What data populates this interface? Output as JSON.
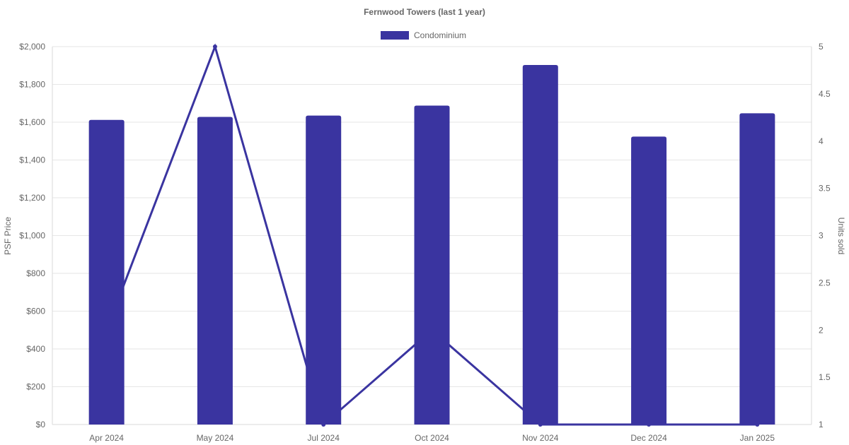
{
  "chart_data": {
    "type": "bar",
    "title": "Fernwood Towers (last 1 year)",
    "categories": [
      "Apr 2024",
      "May 2024",
      "Jul 2024",
      "Oct 2024",
      "Nov 2024",
      "Dec 2024",
      "Jan 2025"
    ],
    "series": [
      {
        "name": "Condominium",
        "type": "bar",
        "axis": "left",
        "values": [
          1612,
          1628,
          1635,
          1688,
          1903,
          1524,
          1647
        ]
      },
      {
        "type": "line",
        "axis": "right",
        "values": [
          2,
          5,
          1,
          2,
          1,
          1,
          1
        ]
      }
    ],
    "y_left": {
      "label": "PSF Price",
      "range": [
        0,
        2000
      ],
      "ticks": [
        "$0",
        "$200",
        "$400",
        "$600",
        "$800",
        "$1,000",
        "$1,200",
        "$1,400",
        "$1,600",
        "$1,800",
        "$2,000"
      ]
    },
    "y_right": {
      "label": "Units sold",
      "range": [
        1,
        5
      ],
      "ticks": [
        "1",
        "1.5",
        "2",
        "2.5",
        "3",
        "3.5",
        "4",
        "4.5",
        "5"
      ]
    },
    "legend": "top-center",
    "grid": true,
    "colors": {
      "bar": "#3a34a0",
      "line": "#3a34a0"
    }
  }
}
